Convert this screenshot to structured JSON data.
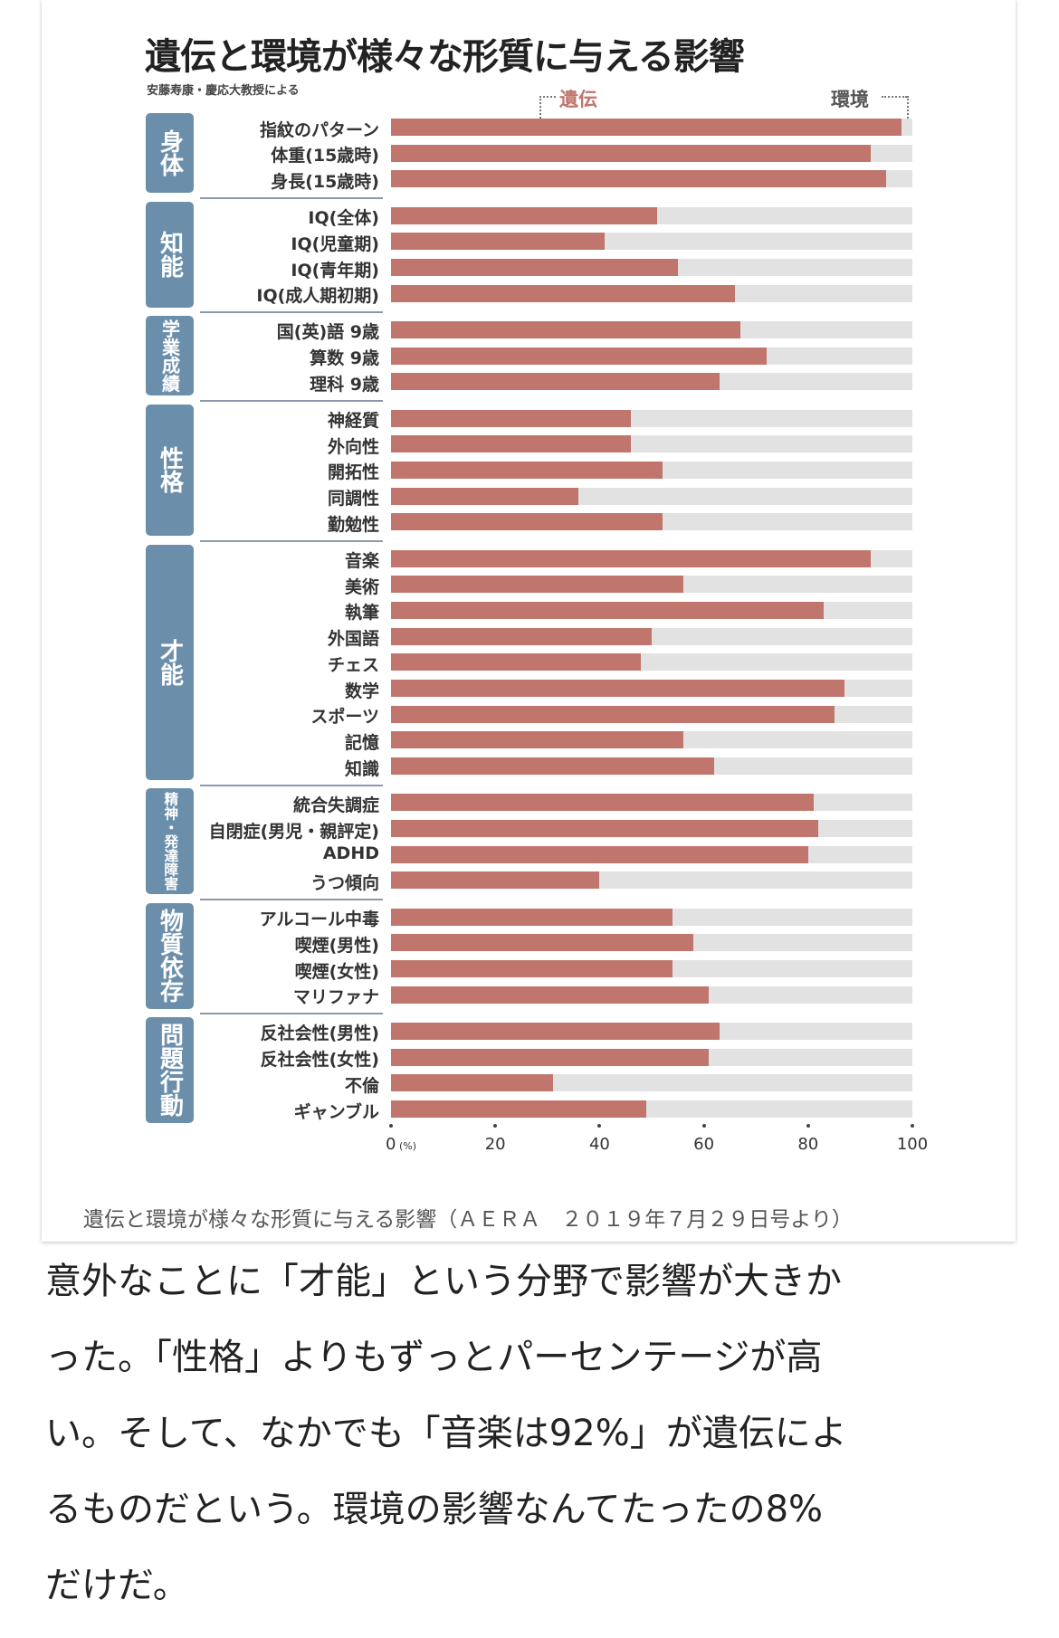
{
  "chart_data": {
    "type": "bar",
    "orientation": "horizontal-stacked",
    "title": "遺伝と環境が様々な形質に与える影響",
    "subtitle": "安藤寿康・慶応大教授による",
    "legend": [
      "遺伝",
      "環境"
    ],
    "xlim": [
      0,
      100
    ],
    "xticks": [
      "0",
      "20",
      "40",
      "60",
      "80",
      "100"
    ],
    "xunit": "(%)",
    "colors": {
      "遺伝": "#c0766c",
      "環境": "#e2e2e2",
      "category": "#6b8fab"
    },
    "groups": [
      {
        "category": "身体",
        "items": [
          {
            "label": "指紋のパターン",
            "value": 98
          },
          {
            "label": "体重(15歳時)",
            "value": 92
          },
          {
            "label": "身長(15歳時)",
            "value": 95
          }
        ]
      },
      {
        "category": "知能",
        "items": [
          {
            "label": "IQ(全体)",
            "value": 51
          },
          {
            "label": "IQ(児童期)",
            "value": 41
          },
          {
            "label": "IQ(青年期)",
            "value": 55
          },
          {
            "label": "IQ(成人期初期)",
            "value": 66
          }
        ]
      },
      {
        "category": "学業成績",
        "items": [
          {
            "label": "国(英)語 9歳",
            "value": 67
          },
          {
            "label": "算数 9歳",
            "value": 72
          },
          {
            "label": "理科 9歳",
            "value": 63
          }
        ]
      },
      {
        "category": "性格",
        "items": [
          {
            "label": "神経質",
            "value": 46
          },
          {
            "label": "外向性",
            "value": 46
          },
          {
            "label": "開拓性",
            "value": 52
          },
          {
            "label": "同調性",
            "value": 36
          },
          {
            "label": "勤勉性",
            "value": 52
          }
        ]
      },
      {
        "category": "才能",
        "items": [
          {
            "label": "音楽",
            "value": 92
          },
          {
            "label": "美術",
            "value": 56
          },
          {
            "label": "執筆",
            "value": 83
          },
          {
            "label": "外国語",
            "value": 50
          },
          {
            "label": "チェス",
            "value": 48
          },
          {
            "label": "数学",
            "value": 87
          },
          {
            "label": "スポーツ",
            "value": 85
          },
          {
            "label": "記憶",
            "value": 56
          },
          {
            "label": "知識",
            "value": 62
          }
        ]
      },
      {
        "category": "精神・発達障害",
        "items": [
          {
            "label": "統合失調症",
            "value": 81
          },
          {
            "label": "自閉症(男児・親評定)",
            "value": 82
          },
          {
            "label": "ADHD",
            "value": 80
          },
          {
            "label": "うつ傾向",
            "value": 40
          }
        ]
      },
      {
        "category": "物質依存",
        "items": [
          {
            "label": "アルコール中毒",
            "value": 54
          },
          {
            "label": "喫煙(男性)",
            "value": 58
          },
          {
            "label": "喫煙(女性)",
            "value": 54
          },
          {
            "label": "マリファナ",
            "value": 61
          }
        ]
      },
      {
        "category": "問題行動",
        "items": [
          {
            "label": "反社会性(男性)",
            "value": 63
          },
          {
            "label": "反社会性(女性)",
            "value": 61
          },
          {
            "label": "不倫",
            "value": 31
          },
          {
            "label": "ギャンブル",
            "value": 49
          }
        ]
      }
    ]
  },
  "caption": "遺伝と環境が様々な形質に与える影響（ＡＥＲＡ　２０１９年７月２９日号より）",
  "body_lines": [
    "意外なことに「才能」という分野で影響が大きか",
    "った。「性格」よりもずっとパーセンテージが高",
    "い。そして、なかでも「音楽は92%」が遺伝によ",
    "るものだという。環境の影響なんてたったの8%",
    "だけだ。"
  ]
}
